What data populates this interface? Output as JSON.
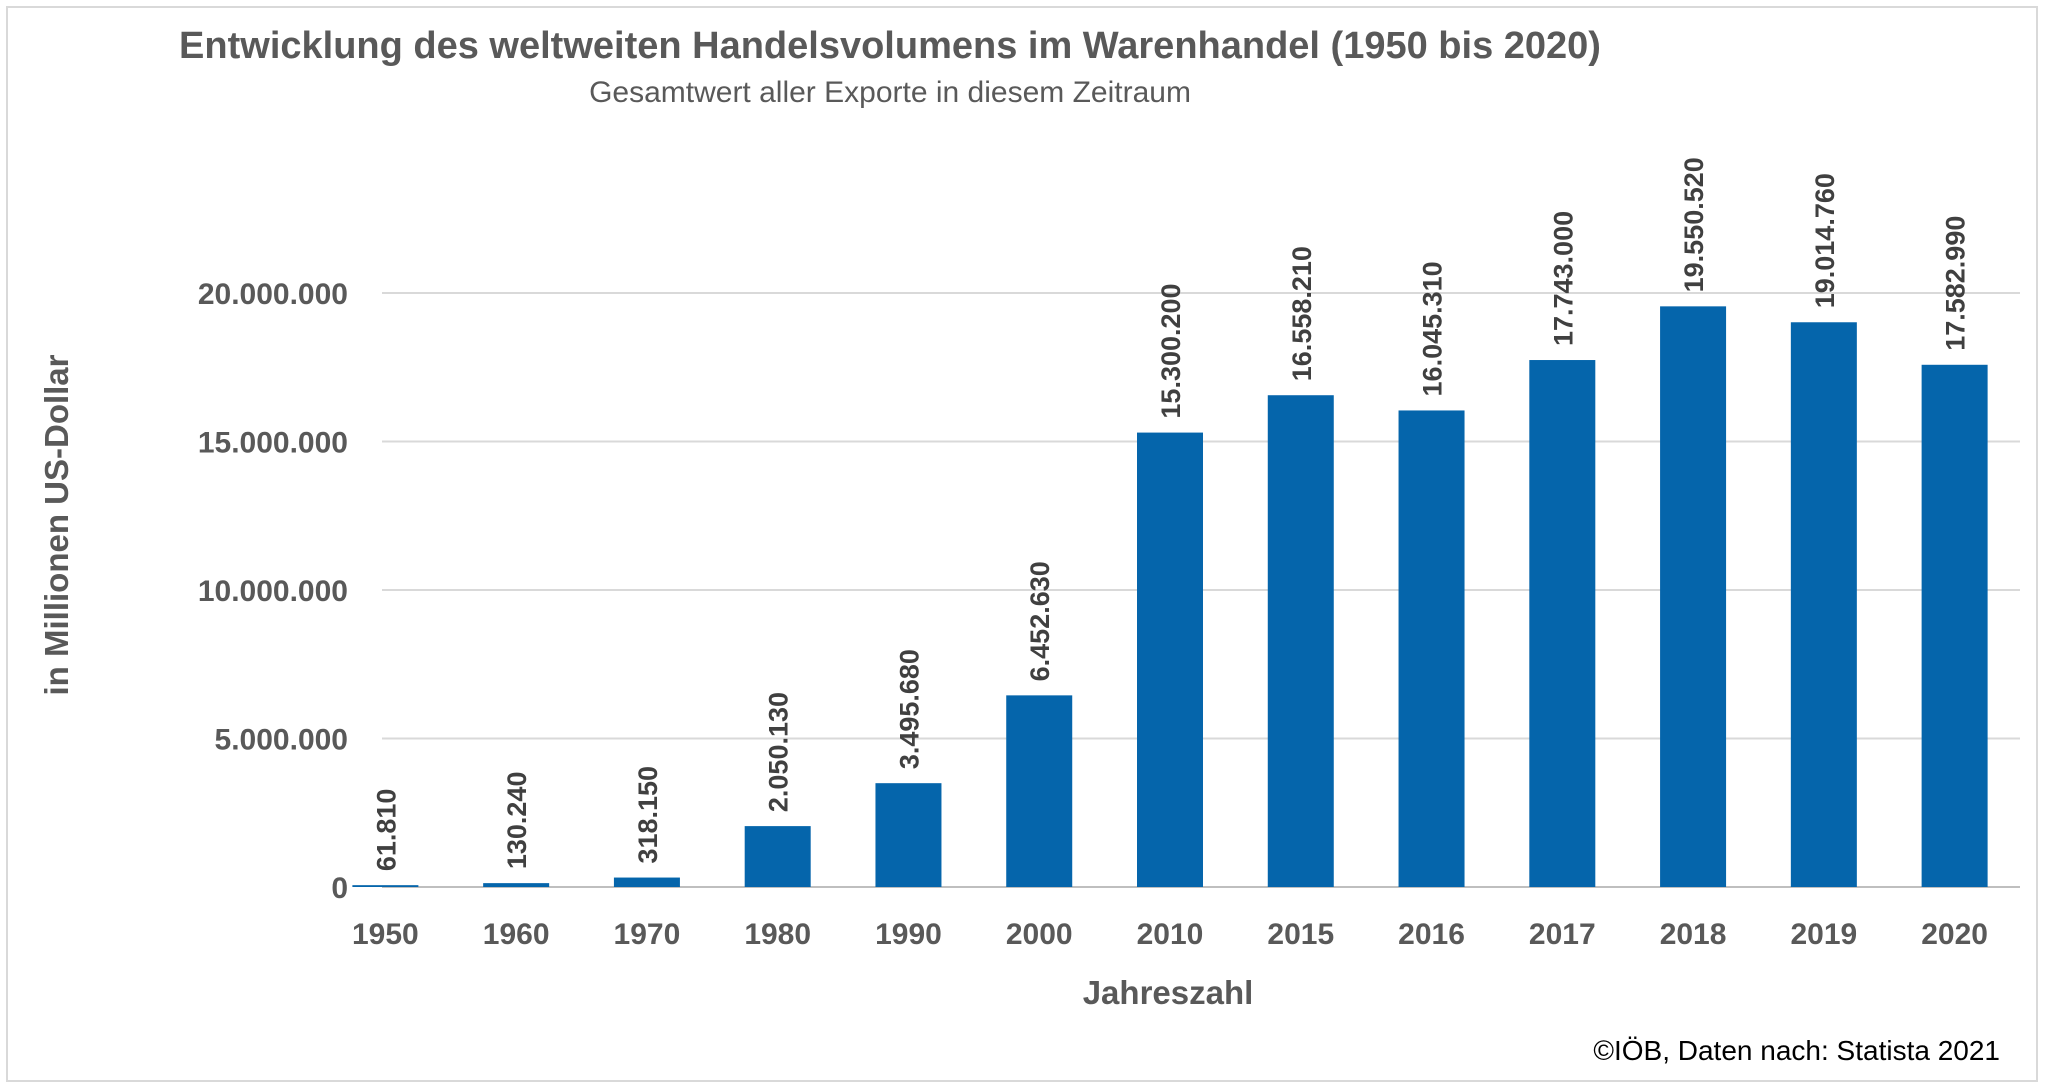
{
  "chart_data": {
    "type": "bar",
    "title": "Entwicklung des weltweiten Handelsvolumens im Warenhandel (1950 bis 2020)",
    "subtitle": "Gesamtwert aller Exporte in diesem Zeitraum",
    "xlabel": "Jahreszahl",
    "ylabel": "in Millionen US-Dollar",
    "categories": [
      "1950",
      "1960",
      "1970",
      "1980",
      "1990",
      "2000",
      "2010",
      "2015",
      "2016",
      "2017",
      "2018",
      "2019",
      "2020"
    ],
    "values": [
      61810,
      130240,
      318150,
      2050130,
      3495680,
      6452630,
      15300200,
      16558210,
      16045310,
      17743000,
      19550520,
      19014760,
      17582990
    ],
    "data_labels": [
      "61.810",
      "130.240",
      "318.150",
      "2.050.130",
      "3.495.680",
      "6.452.630",
      "15.300.200",
      "16.558.210",
      "16.045.310",
      "17.743.000",
      "19.550.520",
      "19.014.760",
      "17.582.990"
    ],
    "ylim": [
      0,
      20000000
    ],
    "yticks": [
      0,
      5000000,
      10000000,
      15000000,
      20000000
    ],
    "ytick_labels": [
      "0",
      "5.000.000",
      "10.000.000",
      "15.000.000",
      "20.000.000"
    ],
    "grid": true,
    "legend": "none",
    "bar_color": "#0565AB",
    "footer": "©IÖB, Daten nach: Statista 2021"
  }
}
